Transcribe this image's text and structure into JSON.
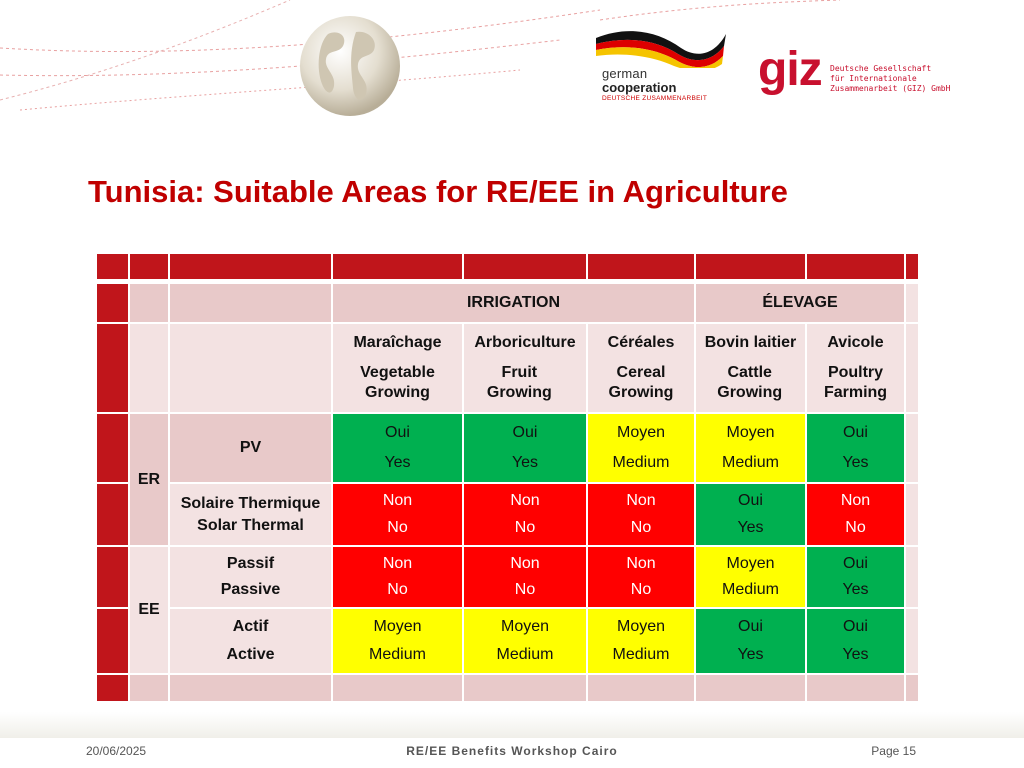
{
  "header": {
    "logo_german_line1": "german",
    "logo_german_line2": "cooperation",
    "logo_german_line3": "DEUTSCHE ZUSAMMENARBEIT",
    "logo_giz_mark": "giz",
    "logo_giz_lines": [
      "Deutsche Gesellschaft",
      "für Internationale",
      "Zusammenarbeit (GIZ) GmbH"
    ]
  },
  "slide": {
    "title": "Tunisia: Suitable Areas for RE/EE in Agriculture"
  },
  "table": {
    "group_irrigation": "IRRIGATION",
    "group_elevage": "ÉLEVAGE",
    "columns": [
      {
        "fr": "Maraîchage",
        "en": "Vegetable Growing"
      },
      {
        "fr": "Arboriculture",
        "en": "Fruit Growing"
      },
      {
        "fr": "Céréales",
        "en": "Cereal Growing"
      },
      {
        "fr": "Bovin laitier",
        "en": "Cattle Growing"
      },
      {
        "fr": "Avicole",
        "en": "Poultry Farming"
      }
    ],
    "section_er": "ER",
    "section_ee": "EE",
    "rows": [
      {
        "label_1": "PV",
        "label_2": "",
        "cells": [
          {
            "fr": "Oui",
            "en": "Yes",
            "level": "green"
          },
          {
            "fr": "Oui",
            "en": "Yes",
            "level": "green"
          },
          {
            "fr": "Moyen",
            "en": "Medium",
            "level": "yellow"
          },
          {
            "fr": "Moyen",
            "en": "Medium",
            "level": "yellow"
          },
          {
            "fr": "Oui",
            "en": "Yes",
            "level": "green"
          }
        ]
      },
      {
        "label_1": "Solaire Thermique",
        "label_2": "Solar Thermal",
        "cells": [
          {
            "fr": "Non",
            "en": "No",
            "level": "red"
          },
          {
            "fr": "Non",
            "en": "No",
            "level": "red"
          },
          {
            "fr": "Non",
            "en": "No",
            "level": "red"
          },
          {
            "fr": "Oui",
            "en": "Yes",
            "level": "green"
          },
          {
            "fr": "Non",
            "en": "No",
            "level": "red"
          }
        ]
      },
      {
        "label_1": "Passif",
        "label_2": "Passive",
        "cells": [
          {
            "fr": "Non",
            "en": "No",
            "level": "red"
          },
          {
            "fr": "Non",
            "en": "No",
            "level": "red"
          },
          {
            "fr": "Non",
            "en": "No",
            "level": "red"
          },
          {
            "fr": "Moyen",
            "en": "Medium",
            "level": "yellow"
          },
          {
            "fr": "Oui",
            "en": "Yes",
            "level": "green"
          }
        ]
      },
      {
        "label_1": "Actif",
        "label_2": "Active",
        "cells": [
          {
            "fr": "Moyen",
            "en": "Medium",
            "level": "yellow"
          },
          {
            "fr": "Moyen",
            "en": "Medium",
            "level": "yellow"
          },
          {
            "fr": "Moyen",
            "en": "Medium",
            "level": "yellow"
          },
          {
            "fr": "Oui",
            "en": "Yes",
            "level": "green"
          },
          {
            "fr": "Oui",
            "en": "Yes",
            "level": "green"
          }
        ]
      }
    ]
  },
  "colors": {
    "title": "#c00000",
    "band_red": "#c0151b",
    "label_fill": "#e8c9c9",
    "light_fill": "#f3e2e2",
    "green": "#00b050",
    "yellow": "#ffff00",
    "red": "#ff0000"
  },
  "footer": {
    "date": "20/06/2025",
    "center": "RE/EE Benefits Workshop Cairo",
    "page": "Page 15"
  }
}
